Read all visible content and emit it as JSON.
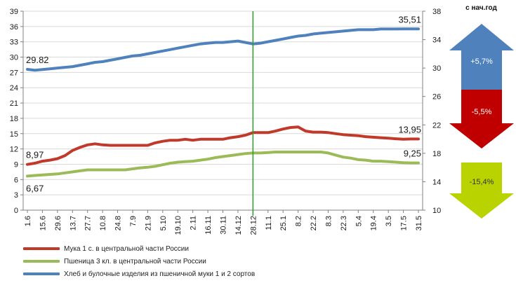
{
  "chart_data": {
    "type": "line",
    "x": [
      "1.6",
      "8.6",
      "15.6",
      "22.6",
      "29.6",
      "6.7",
      "13.7",
      "20.7",
      "27.7",
      "3.8",
      "10.8",
      "17.8",
      "24.8",
      "31.8",
      "7.9",
      "14.9",
      "21.9",
      "28.9",
      "5.10",
      "12.10",
      "19.10",
      "26.10",
      "2.11",
      "9.11",
      "16.11",
      "23.11",
      "30.11",
      "7.12",
      "14.12",
      "21.12",
      "28.12",
      "4.1",
      "11.1",
      "18.1",
      "25.1",
      "1.2",
      "8.2",
      "15.2",
      "22.2",
      "1.3",
      "8.3",
      "15.3",
      "22.3",
      "29.3",
      "5.4",
      "12.4",
      "19.4",
      "26.4",
      "3.5",
      "10.5",
      "17.5",
      "24.5",
      "31.5"
    ],
    "x_tick_labels": [
      "1.6",
      "15.6",
      "29.6",
      "13.7",
      "27.7",
      "10.8",
      "24.8",
      "7.9",
      "21.9",
      "5.10",
      "19.10",
      "2.11",
      "16.11",
      "30.11",
      "14.12",
      "28.12",
      "11.1",
      "25.1",
      "8.2",
      "22.2",
      "8.3",
      "22.3",
      "5.4",
      "19.4",
      "3.5",
      "17.5",
      "31.5"
    ],
    "y_left": {
      "min": 0,
      "max": 39,
      "step": 3
    },
    "y_right": {
      "min": 10,
      "max": 38,
      "step": 4
    },
    "vertical_marker_x": "28.12",
    "series": [
      {
        "name": "Мука 1 с. в центральной части России",
        "axis": "left",
        "color": "#c0392b",
        "values": [
          8.97,
          9.2,
          9.6,
          9.8,
          10.1,
          10.7,
          11.7,
          12.3,
          12.8,
          13.0,
          12.8,
          12.7,
          12.7,
          12.7,
          12.7,
          12.7,
          12.7,
          13.2,
          13.5,
          13.7,
          13.7,
          13.9,
          13.7,
          13.9,
          13.9,
          13.9,
          13.9,
          14.2,
          14.4,
          14.7,
          15.2,
          15.2,
          15.2,
          15.5,
          15.9,
          16.2,
          16.3,
          15.5,
          15.3,
          15.3,
          15.2,
          15.0,
          14.8,
          14.7,
          14.6,
          14.4,
          14.3,
          14.2,
          14.1,
          14.0,
          13.9,
          13.95,
          13.95
        ],
        "labels": [
          {
            "x": "1.6",
            "text": "8,97"
          },
          {
            "x": "31.5",
            "text": "13,95"
          }
        ]
      },
      {
        "name": "Пшеница 3 кл. в центральной части России",
        "axis": "left",
        "color": "#9bbb59",
        "values": [
          6.67,
          6.8,
          6.9,
          7.0,
          7.1,
          7.3,
          7.5,
          7.7,
          7.9,
          7.9,
          7.9,
          7.9,
          7.9,
          7.9,
          8.1,
          8.3,
          8.4,
          8.6,
          8.9,
          9.2,
          9.4,
          9.5,
          9.6,
          9.8,
          10.0,
          10.3,
          10.5,
          10.7,
          10.9,
          11.1,
          11.2,
          11.2,
          11.3,
          11.4,
          11.4,
          11.4,
          11.4,
          11.4,
          11.4,
          11.4,
          11.2,
          10.8,
          10.4,
          10.2,
          9.9,
          9.8,
          9.6,
          9.6,
          9.5,
          9.4,
          9.3,
          9.25,
          9.25
        ],
        "labels": [
          {
            "x": "1.6",
            "text": "6,67"
          },
          {
            "x": "31.5",
            "text": "9,25"
          }
        ]
      },
      {
        "name": "Хлеб и булочные изделия из пшеничной муки 1 и 2 сортов",
        "axis": "right",
        "color": "#4f81bd",
        "values": [
          29.82,
          29.7,
          29.8,
          29.9,
          30.0,
          30.1,
          30.2,
          30.4,
          30.6,
          30.8,
          30.9,
          31.1,
          31.3,
          31.5,
          31.7,
          31.8,
          32.0,
          32.2,
          32.4,
          32.6,
          32.8,
          33.0,
          33.2,
          33.4,
          33.5,
          33.6,
          33.6,
          33.7,
          33.8,
          33.6,
          33.4,
          33.5,
          33.7,
          33.9,
          34.1,
          34.3,
          34.5,
          34.6,
          34.8,
          34.9,
          35.0,
          35.1,
          35.2,
          35.3,
          35.4,
          35.4,
          35.4,
          35.5,
          35.5,
          35.5,
          35.51,
          35.51,
          35.51
        ],
        "labels": [
          {
            "x": "1.6",
            "text": "29.82"
          },
          {
            "x": "31.5",
            "text": "35,51"
          }
        ]
      }
    ],
    "legend_placement": "bottom-left"
  },
  "side_panel": {
    "title": "с нач.год",
    "arrows": [
      {
        "direction": "up",
        "color": "#4f81bd",
        "text": "+5,7%"
      },
      {
        "direction": "down",
        "color": "#c00000",
        "text": "-5,5%"
      },
      {
        "direction": "down",
        "color": "#b9d300",
        "text": "-15,4%"
      }
    ]
  }
}
